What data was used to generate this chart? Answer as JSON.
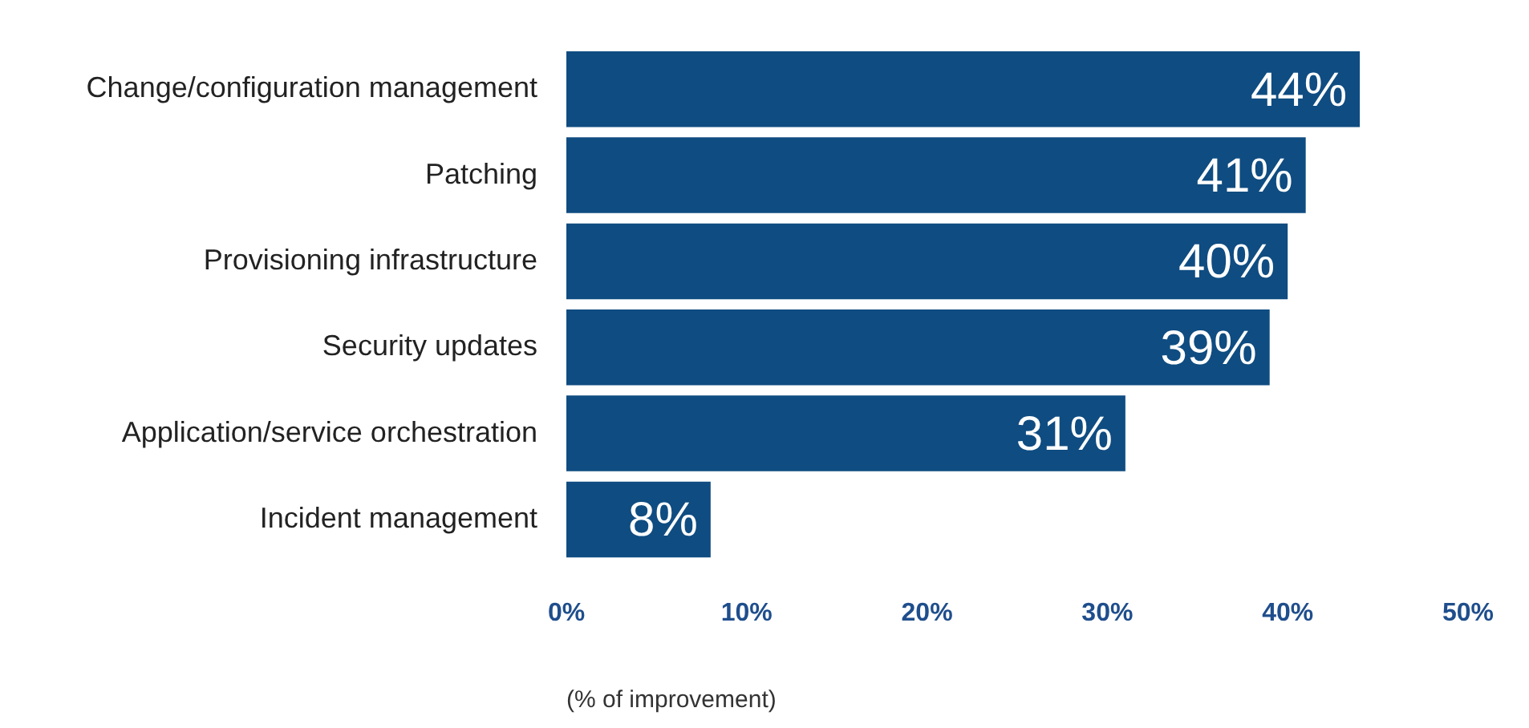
{
  "chart_data": {
    "type": "bar",
    "orientation": "horizontal",
    "categories": [
      "Change/configuration management",
      "Patching",
      "Provisioning infrastructure",
      "Security updates",
      "Application/service orchestration",
      "Incident management"
    ],
    "values": [
      44,
      41,
      40,
      39,
      31,
      8
    ],
    "color": "#0f4c81",
    "value_labels": [
      "44%",
      "41%",
      "40%",
      "39%",
      "31%",
      "8%"
    ],
    "xlabel": "(% of improvement)",
    "xlim": [
      0,
      50
    ],
    "xticks": [
      {
        "value": 0,
        "label": "0%"
      },
      {
        "value": 10,
        "label": "10%"
      },
      {
        "value": 20,
        "label": "20%"
      },
      {
        "value": 30,
        "label": "30%"
      },
      {
        "value": 40,
        "label": "40%"
      },
      {
        "value": 50,
        "label": "50%"
      }
    ],
    "grid": false,
    "legend": false
  }
}
